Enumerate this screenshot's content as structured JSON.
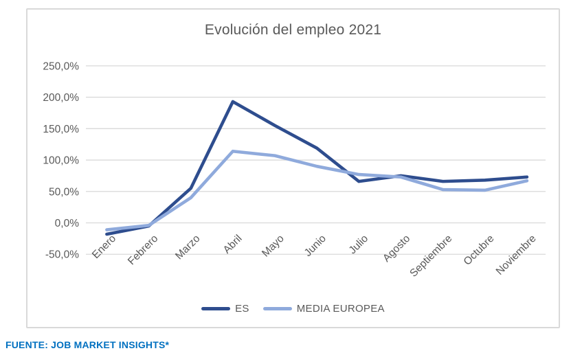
{
  "chart_data": {
    "type": "line",
    "title": "Evolución del empleo 2021",
    "categories": [
      "Enero",
      "Febrero",
      "Marzo",
      "Abril",
      "Mayo",
      "Junio",
      "Julio",
      "Agosto",
      "Septiembre",
      "Octubre",
      "Noviembre"
    ],
    "series": [
      {
        "name": "ES",
        "color": "#2E4D8E",
        "values_pct": [
          -18,
          -5,
          55,
          193,
          155,
          119,
          66,
          75,
          66,
          68,
          73
        ]
      },
      {
        "name": "MEDIA EUROPEA",
        "color": "#8FAADC",
        "values_pct": [
          -11,
          -4,
          40,
          114,
          107,
          90,
          77,
          73,
          53,
          52,
          67
        ]
      }
    ],
    "ylim": [
      -50,
      250
    ],
    "ytick_step_pct": 50,
    "ytick_labels": [
      "250,0%",
      "200,0%",
      "150,0%",
      "100,0%",
      "50,0%",
      "0,0%",
      "-50,0%"
    ],
    "grid": true,
    "legend_position": "bottom",
    "x_label_rotation_deg": -45
  },
  "footer": {
    "source_text": "FUENTE: JOB MARKET INSIGHTS*",
    "color": "#0070C0"
  },
  "colors": {
    "grid": "#D9D9D9",
    "axis_text": "#595959",
    "title_text": "#595959",
    "box_border": "#D9D9D9",
    "background": "#FFFFFF"
  }
}
